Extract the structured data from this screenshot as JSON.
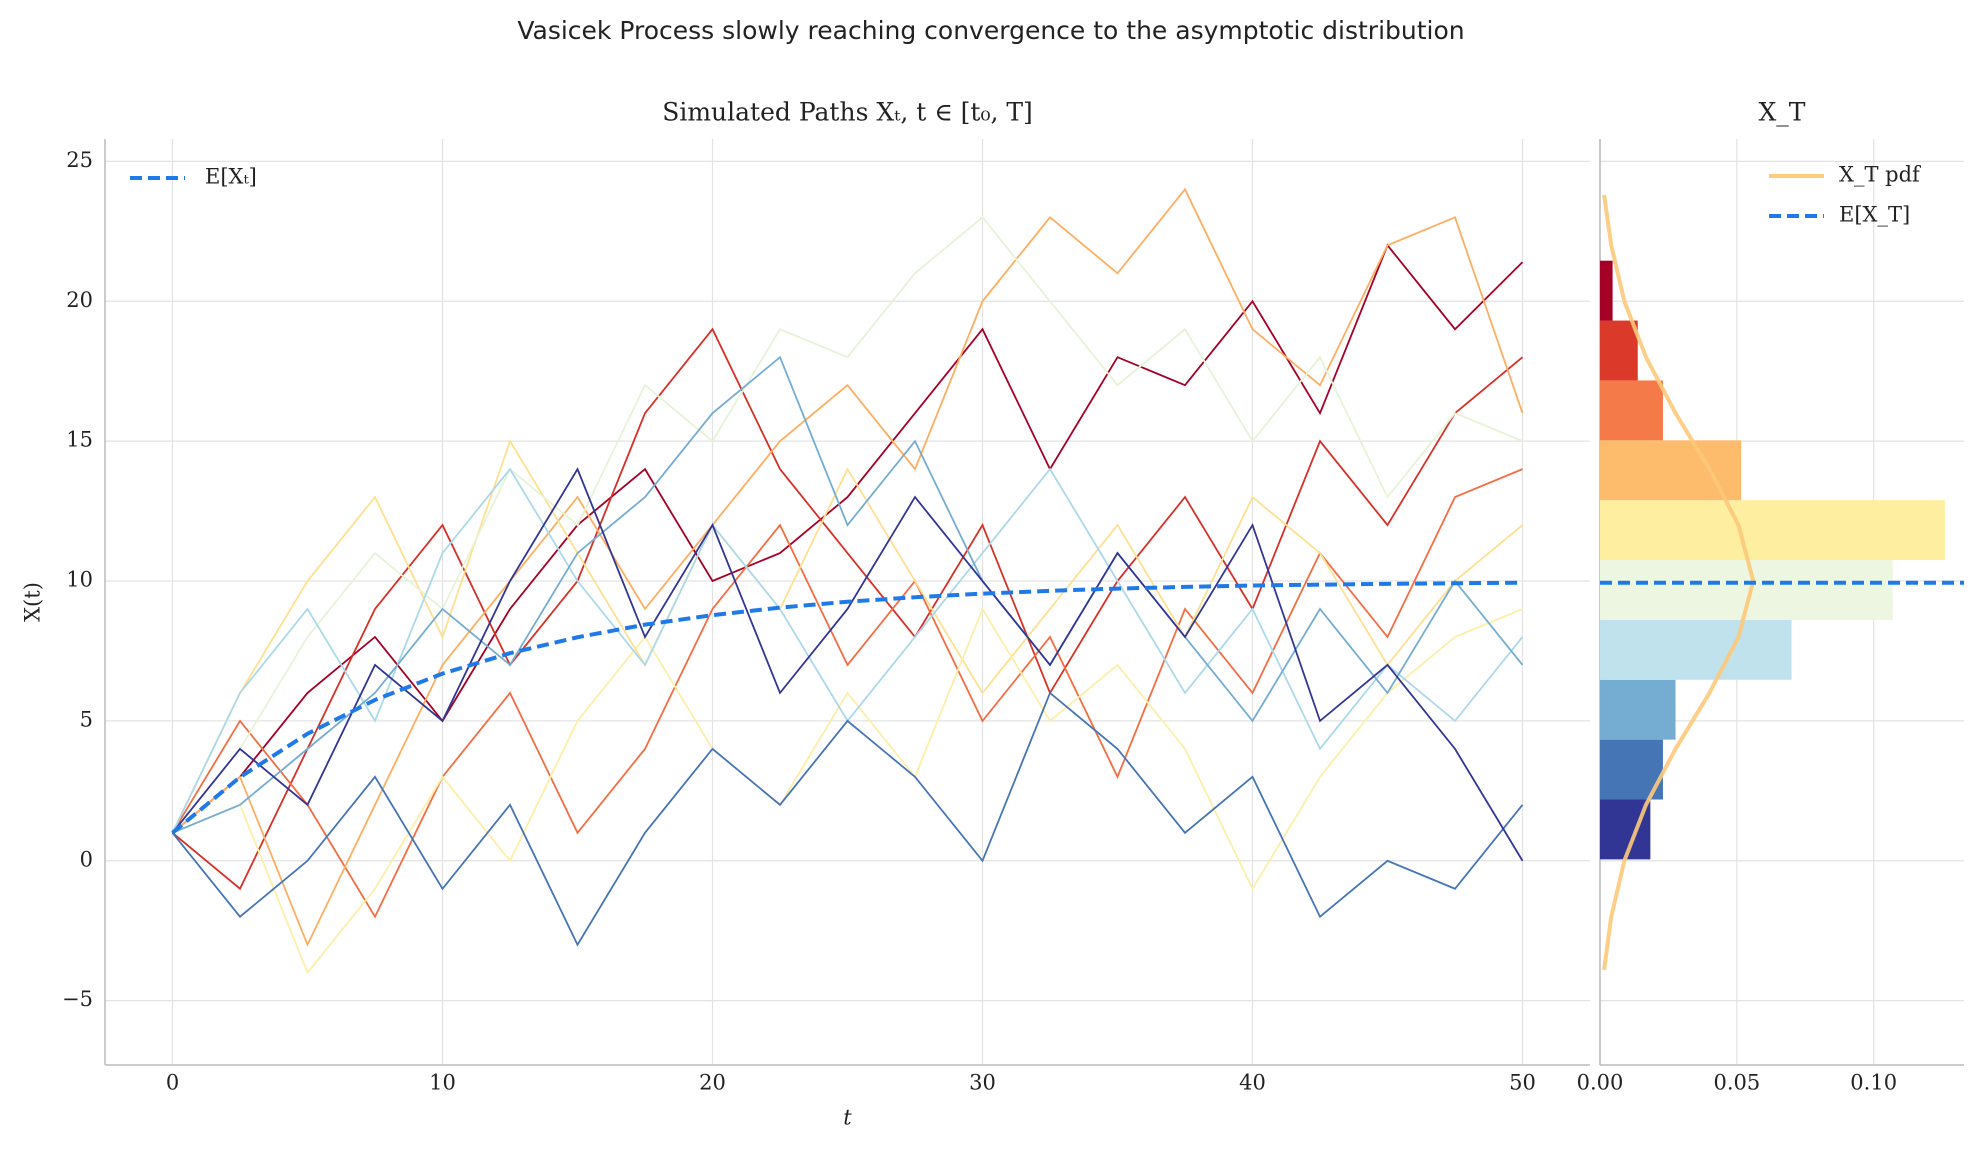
{
  "title": "Vasicek Process slowly reaching convergence to the asymptotic distribution",
  "chart_data": [
    {
      "type": "line",
      "title": "Simulated Paths Xₜ, t ∈ [t₀, T]",
      "x_label": "t",
      "y_label": "X(t)",
      "xlim": [
        -2.5,
        52.5
      ],
      "ylim": [
        -7.3,
        25.8
      ],
      "xticks": [
        0,
        10,
        20,
        30,
        40,
        50
      ],
      "yticks": [
        {
          "value": -5,
          "label": "−5"
        },
        0,
        5,
        10,
        15,
        20,
        25
      ],
      "grid": true,
      "legend": "upper left",
      "x": [
        0,
        2.5,
        5,
        7.5,
        10,
        12.5,
        15,
        17.5,
        20,
        22.5,
        25,
        27.5,
        30,
        32.5,
        35,
        37.5,
        40,
        42.5,
        45,
        47.5,
        50
      ],
      "paths": [
        {
          "color": "#a50026",
          "values": [
            1,
            3,
            6,
            8,
            5,
            9,
            12,
            14,
            10,
            11,
            13,
            16,
            19,
            14,
            18,
            17,
            20,
            16,
            22,
            19,
            21.4
          ]
        },
        {
          "color": "#d73027",
          "values": [
            1,
            -1,
            4,
            9,
            12,
            7,
            10,
            16,
            19,
            14,
            11,
            8,
            12,
            6,
            10,
            13,
            9,
            15,
            12,
            16,
            18
          ]
        },
        {
          "color": "#f46d43",
          "values": [
            1,
            5,
            2,
            -2,
            3,
            6,
            1,
            4,
            9,
            12,
            7,
            10,
            5,
            8,
            3,
            9,
            6,
            11,
            8,
            13,
            14
          ]
        },
        {
          "color": "#fdae61",
          "values": [
            1,
            3,
            -3,
            2,
            7,
            10,
            13,
            9,
            12,
            15,
            17,
            14,
            20,
            23,
            21,
            24,
            19,
            17,
            22,
            23,
            16
          ]
        },
        {
          "color": "#fee090",
          "values": [
            1,
            6,
            10,
            13,
            8,
            15,
            11,
            7,
            12,
            9,
            14,
            10,
            6,
            9,
            12,
            8,
            13,
            11,
            7,
            10,
            12
          ]
        },
        {
          "color": "#fdeea8",
          "values": [
            1,
            2,
            -4,
            -1,
            3,
            0,
            5,
            8,
            4,
            2,
            6,
            3,
            9,
            5,
            7,
            4,
            -1,
            3,
            6,
            8,
            9
          ]
        },
        {
          "color": "#e6f3d6",
          "values": [
            1,
            4,
            8,
            11,
            9,
            14,
            12,
            17,
            15,
            19,
            18,
            21,
            23,
            20,
            17,
            19,
            15,
            18,
            13,
            16,
            15
          ]
        },
        {
          "color": "#abd9e9",
          "values": [
            1,
            6,
            9,
            5,
            11,
            14,
            10,
            7,
            12,
            9,
            5,
            8,
            11,
            14,
            10,
            6,
            9,
            4,
            7,
            5,
            8
          ]
        },
        {
          "color": "#74add1",
          "values": [
            1,
            2,
            4,
            6,
            9,
            7,
            11,
            13,
            16,
            18,
            12,
            15,
            10,
            7,
            11,
            8,
            5,
            9,
            6,
            10,
            7
          ]
        },
        {
          "color": "#4575b4",
          "values": [
            1,
            -2,
            0,
            3,
            -1,
            2,
            -3,
            1,
            4,
            2,
            5,
            3,
            0,
            6,
            4,
            1,
            3,
            -2,
            0,
            -1,
            2
          ]
        },
        {
          "color": "#313695",
          "values": [
            1,
            4,
            2,
            7,
            5,
            10,
            14,
            8,
            12,
            6,
            9,
            13,
            10,
            7,
            11,
            8,
            12,
            5,
            7,
            4,
            0
          ]
        }
      ],
      "series": [
        {
          "name": "E[Xₜ]",
          "color": "#1f7ae8",
          "values": [
            1.0,
            2.99,
            4.54,
            5.75,
            6.69,
            7.42,
            7.99,
            8.44,
            8.78,
            9.05,
            9.26,
            9.42,
            9.55,
            9.65,
            9.73,
            9.79,
            9.84,
            9.87,
            9.9,
            9.92,
            9.94
          ]
        }
      ]
    },
    {
      "type": "histogram",
      "title": "X_T",
      "orientation": "horizontal",
      "xlim": [
        0,
        0.133
      ],
      "ylim": [
        -7.3,
        25.8
      ],
      "xticks": [
        {
          "value": 0,
          "label": "0.00"
        },
        {
          "value": 0.05,
          "label": "0.05"
        },
        {
          "value": 0.1,
          "label": "0.10"
        }
      ],
      "yticks": [
        -5,
        0,
        5,
        10,
        15,
        20,
        25
      ],
      "grid": true,
      "legend": "upper right",
      "bins": [
        0.05,
        2.19,
        4.33,
        6.47,
        8.61,
        10.75,
        12.89,
        15.03,
        17.17,
        19.31,
        21.45
      ],
      "values": [
        0.0184,
        0.023,
        0.0276,
        0.07,
        0.107,
        0.126,
        0.0516,
        0.023,
        0.0138,
        0.0046
      ],
      "colors": [
        "#313695",
        "#4575b4",
        "#74add1",
        "#bfe2ec",
        "#ecf6e0",
        "#fdeea0",
        "#fdbb6c",
        "#f57a4a",
        "#db3a2b",
        "#a50026"
      ],
      "pdf": {
        "name": "X_T pdf",
        "color": "#fdc97a",
        "y": [
          -3.9,
          -2,
          0,
          2,
          4,
          6,
          8,
          10,
          12,
          14,
          16,
          18,
          20,
          22,
          23.8
        ],
        "values": [
          0.0015,
          0.0041,
          0.0089,
          0.0168,
          0.0276,
          0.04,
          0.0506,
          0.056,
          0.0506,
          0.04,
          0.0276,
          0.0168,
          0.0089,
          0.0041,
          0.0015
        ]
      },
      "mean": {
        "name": "E[X_T]",
        "color": "#1f7ae8",
        "value": 9.94
      }
    }
  ]
}
